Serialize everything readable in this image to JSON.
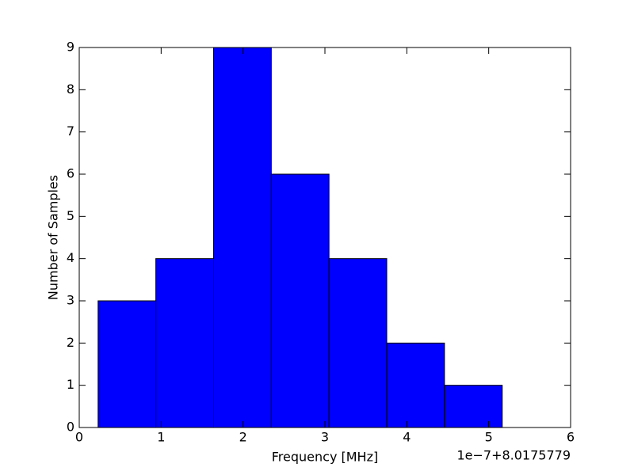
{
  "chart_data": {
    "type": "histogram",
    "xlabel": "Frequency [MHz]",
    "ylabel": "Number of Samples",
    "offset_label": "1e−7+8.0175779",
    "bins": [
      0.23,
      0.935,
      1.64,
      2.345,
      3.05,
      3.755,
      4.46,
      5.165
    ],
    "values": [
      3,
      4,
      9,
      6,
      4,
      2,
      1
    ],
    "color": "#0000ff",
    "edgecolor": "#000000",
    "xlim": [
      0,
      6
    ],
    "xticks": [
      0,
      1,
      2,
      3,
      4,
      5,
      6
    ],
    "ylim": [
      0,
      9
    ],
    "yticks": [
      0,
      1,
      2,
      3,
      4,
      5,
      6,
      7,
      8,
      9
    ]
  }
}
